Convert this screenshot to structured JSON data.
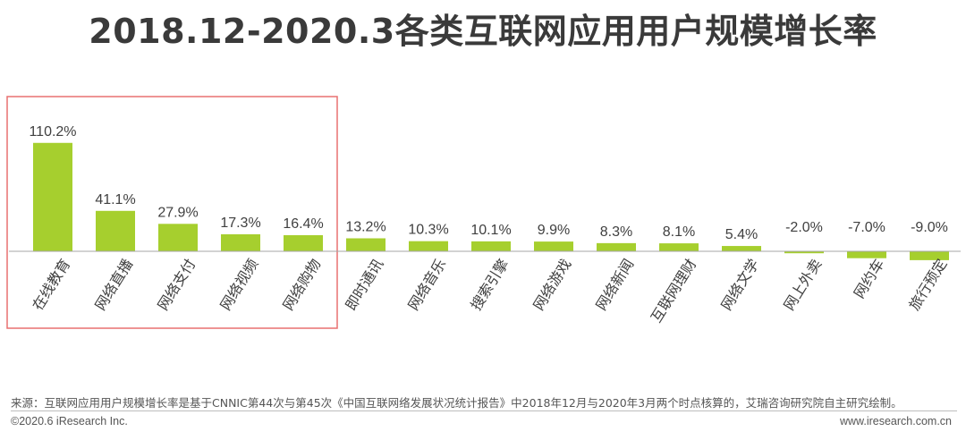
{
  "page": {
    "title": "2018.12-2020.3各类互联网应用用户规模增长率",
    "source": "来源：互联网应用用户规模增长率是基于CNNIC第44次与第45次《中国互联网络发展状况统计报告》中2018年12月与2020年3月两个时点核算的，艾瑞咨询研究院自主研究绘制。",
    "copyright": "©2020.6 iResearch Inc.",
    "website": "www.iresearch.com.cn"
  },
  "chart_data": {
    "type": "bar",
    "title": "2018.12-2020.3各类互联网应用用户规模增长率",
    "categories": [
      "在线教育",
      "网络直播",
      "网络支付",
      "网络视频",
      "网络购物",
      "即时通讯",
      "网络音乐",
      "搜索引擎",
      "网络游戏",
      "网络新闻",
      "互联网理财",
      "网络文学",
      "网上外卖",
      "网约车",
      "旅行预定"
    ],
    "values": [
      110.2,
      41.1,
      27.9,
      17.3,
      16.4,
      13.2,
      10.3,
      10.1,
      9.9,
      8.3,
      8.1,
      5.4,
      -2.0,
      -7.0,
      -9.0
    ],
    "data_labels": [
      "110.2%",
      "41.1%",
      "27.9%",
      "17.3%",
      "16.4%",
      "13.2%",
      "10.3%",
      "10.1%",
      "9.9%",
      "8.3%",
      "8.1%",
      "5.4%",
      "-2.0%",
      "-7.0%",
      "-9.0%"
    ],
    "unit": "%",
    "bar_color": "#a6cf2e",
    "axis_color": "#a6a6a6",
    "highlight_box": {
      "from_category": 0,
      "to_category": 4,
      "color": "#e87070"
    },
    "grid": false,
    "legend": "none"
  }
}
